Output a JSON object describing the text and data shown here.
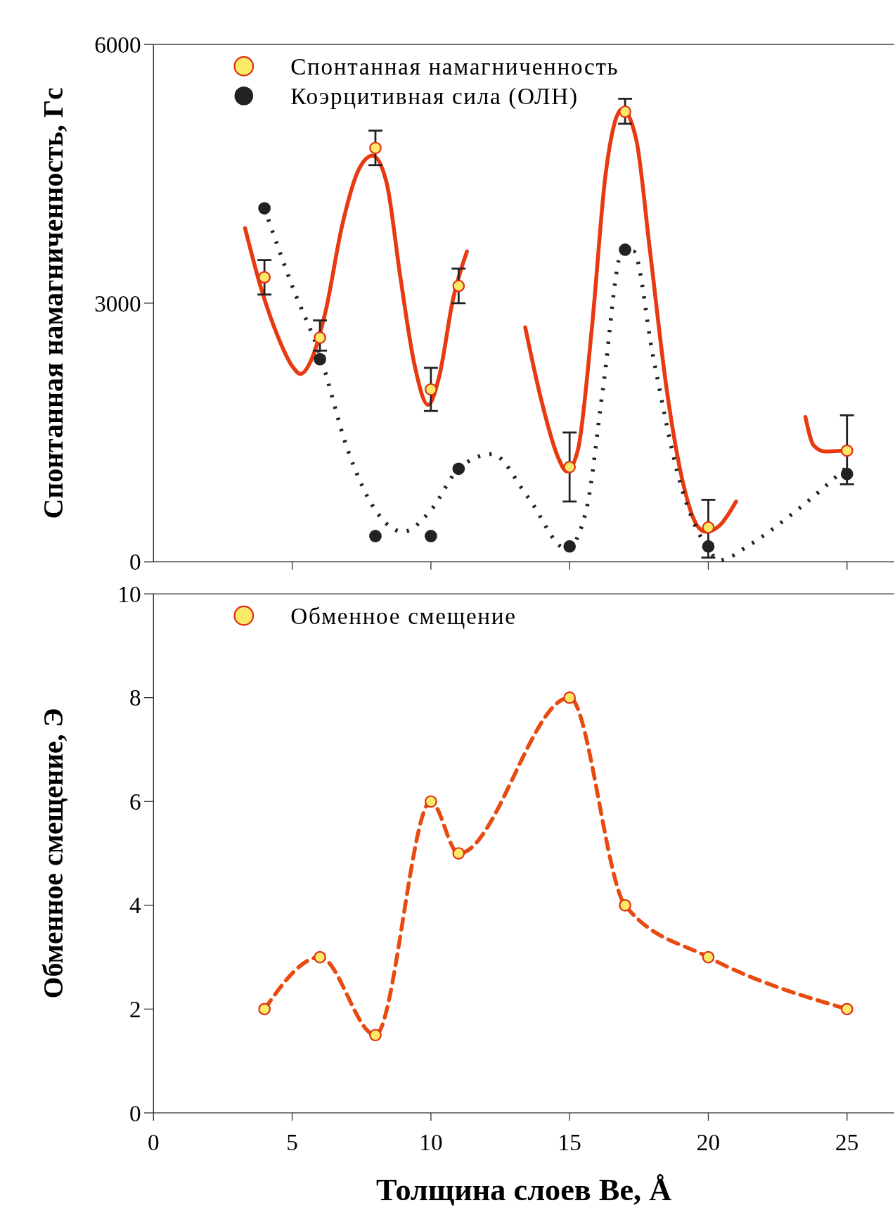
{
  "chart_data": [
    {
      "type": "scatter",
      "ylabel": "Спонтанная намагниченность, Гс",
      "xlim": [
        0,
        26.7
      ],
      "ylim": [
        0,
        6000
      ],
      "yticks": [
        0,
        3000,
        6000
      ],
      "xticks": [
        {
          "value": 5,
          "label": null
        },
        {
          "value": 10,
          "label": null
        },
        {
          "value": 15,
          "label": null
        },
        {
          "value": 20,
          "label": null
        },
        {
          "value": 25,
          "label": null
        }
      ],
      "tick_labels": "y",
      "legend": "top left",
      "series": [
        {
          "type": "line",
          "color": "#e83a10",
          "line_style": "solid",
          "x": [
            3.3,
            3.9,
            4.5,
            5.0,
            5.3,
            5.7,
            6.2,
            6.8,
            7.4,
            7.9,
            8.4,
            8.9,
            9.4,
            9.9,
            10.3,
            10.8,
            11.3,
            12,
            13.4,
            14.0,
            14.6,
            14.9,
            15.3,
            15.8,
            16.3,
            16.9,
            17.4,
            17.9,
            18.5,
            19.1,
            19.6,
            19.9,
            20.4,
            21.0,
            22,
            23.5,
            23.8,
            24.2,
            24.9
          ],
          "values": [
            3870,
            3150,
            2600,
            2270,
            2180,
            2350,
            2900,
            3900,
            4550,
            4710,
            4400,
            3300,
            2300,
            1820,
            2150,
            3050,
            3600,
            null,
            2720,
            1850,
            1200,
            1050,
            1300,
            2700,
            4500,
            5250,
            4900,
            3600,
            2000,
            900,
            420,
            350,
            420,
            700,
            null,
            1680,
            1350,
            1280,
            1290
          ]
        },
        {
          "type": "line",
          "color": "#222222",
          "line_style": "dotted",
          "x": [
            4,
            5,
            6,
            7,
            8,
            9,
            10,
            11,
            12.2,
            13.5,
            14.9,
            15.6,
            16.2,
            16.9,
            17.3,
            18,
            19,
            20,
            20.4,
            21.5,
            23,
            25
          ],
          "values": [
            4100,
            3200,
            2400,
            1300,
            600,
            350,
            600,
            1080,
            1250,
            750,
            150,
            600,
            2000,
            3600,
            3600,
            2400,
            900,
            150,
            20,
            200,
            550,
            1100
          ]
        },
        {
          "name": "Спонтанная намагниченность",
          "color": "#fbe96a",
          "marker": "circle",
          "x": [
            4,
            6,
            8,
            10,
            11,
            15,
            17,
            20,
            25
          ],
          "values": [
            3300,
            2600,
            4800,
            2000,
            3200,
            1100,
            5220,
            400,
            1290
          ],
          "errors": [
            [
              3100,
              3500
            ],
            [
              2450,
              2800
            ],
            [
              4600,
              5000
            ],
            [
              1750,
              2250
            ],
            [
              3000,
              3400
            ],
            [
              700,
              1500
            ],
            [
              5080,
              5370
            ],
            [
              50,
              720
            ],
            [
              900,
              1700
            ]
          ]
        },
        {
          "name": "Коэрцитивная сила (ОЛН)",
          "color": "#222222",
          "marker": "circle",
          "x": [
            4,
            6,
            8,
            10,
            11,
            15,
            17,
            20,
            25
          ],
          "values": [
            4100,
            2350,
            300,
            300,
            1080,
            180,
            3620,
            180,
            1020
          ]
        }
      ]
    },
    {
      "type": "scatter",
      "xlabel": "Толщина слоев Be, Å",
      "ylabel": "Обменное смещение, Э",
      "xlim": [
        0,
        26.7
      ],
      "ylim": [
        0,
        10
      ],
      "yticks": [
        0,
        2,
        4,
        6,
        8,
        10
      ],
      "xticks": [
        0,
        5,
        10,
        15,
        20,
        25
      ],
      "legend": "top left",
      "series": [
        {
          "type": "line",
          "color": "#e84a10",
          "line_style": "dashed",
          "x": [
            4,
            6,
            8,
            10,
            11,
            15,
            17,
            20,
            25
          ],
          "values": [
            2,
            3,
            1.5,
            6,
            5,
            8,
            4,
            3,
            2
          ]
        },
        {
          "name": "Обменное смещение",
          "color": "#fbe96a",
          "marker": "circle",
          "x": [
            4,
            6,
            8,
            10,
            11,
            15,
            17,
            20,
            25
          ],
          "values": [
            2,
            3,
            1.5,
            6,
            5,
            8,
            4,
            3,
            2
          ]
        }
      ]
    }
  ]
}
